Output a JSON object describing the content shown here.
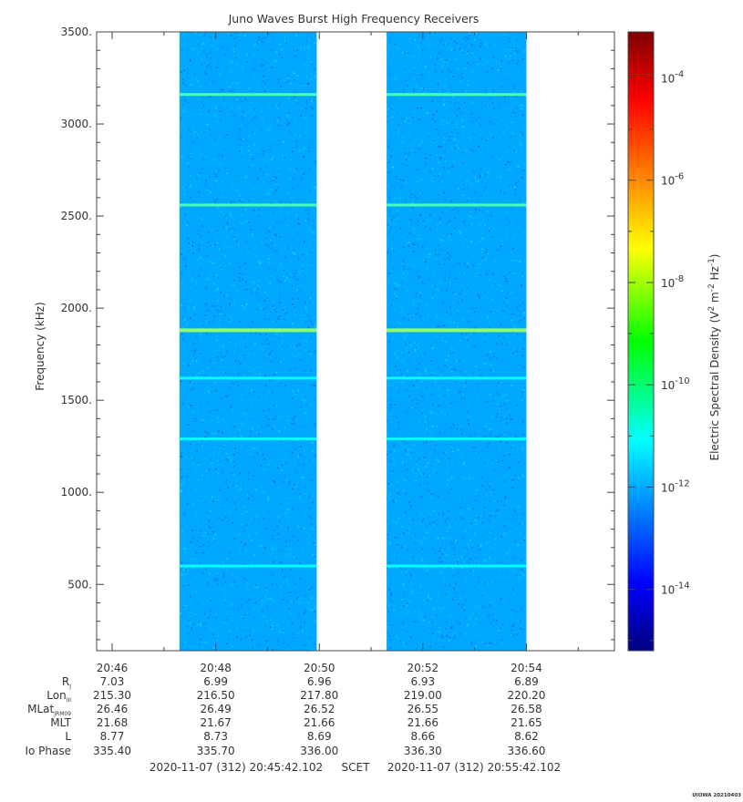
{
  "chart_data": {
    "type": "heatmap",
    "title": "Juno Waves Burst High Frequency Receivers",
    "ylabel": "Frequency (kHz)",
    "ylim": [
      140,
      3500
    ],
    "y_tick_labels": [
      "3500.",
      "3000.",
      "2500.",
      "2000.",
      "1500.",
      "1000.",
      "500."
    ],
    "y_tick_values": [
      3500,
      3000,
      2500,
      2000,
      1500,
      1000,
      500
    ],
    "x_tick_labels": [
      "20:46",
      "20:48",
      "20:50",
      "20:52",
      "20:54"
    ],
    "x_tick_minutes": [
      46,
      48,
      50,
      52,
      54
    ],
    "xlim_minutes": [
      45.7,
      55.7
    ],
    "data_intervals_minutes": [
      [
        47.3,
        49.95
      ],
      [
        51.3,
        54.0
      ]
    ],
    "emission_lines_khz": [
      3160,
      2560,
      1880,
      1620,
      1290,
      600
    ],
    "background_density_log10": -11.7,
    "colorbar": {
      "label": "Electric Spectral Density (V",
      "label_sup1": "2",
      "label_mid": " m",
      "label_sup2": "-2",
      "label_mid2": " Hz",
      "label_sup3": "-1",
      "label_end": ")",
      "range_log10": [
        -15.2,
        -3.1
      ],
      "tick_base": "10",
      "tick_exponents": [
        "-4",
        "-6",
        "-8",
        "-10",
        "-12",
        "-14"
      ]
    },
    "ephemeris": {
      "rows": [
        {
          "label": "R",
          "sub": "J",
          "values": [
            "7.03",
            "6.99",
            "6.96",
            "6.93",
            "6.89"
          ]
        },
        {
          "label": "Lon",
          "sub": "III",
          "values": [
            "215.30",
            "216.50",
            "217.80",
            "219.00",
            "220.20"
          ]
        },
        {
          "label": "MLat",
          "sub": "JRM09",
          "values": [
            "26.46",
            "26.49",
            "26.52",
            "26.55",
            "26.58"
          ]
        },
        {
          "label": "MLT",
          "sub": "",
          "values": [
            "21.68",
            "21.67",
            "21.66",
            "21.66",
            "21.65"
          ]
        },
        {
          "label": "L",
          "sub": "",
          "values": [
            "8.77",
            "8.73",
            "8.69",
            "8.66",
            "8.62"
          ]
        },
        {
          "label": "Io Phase",
          "sub": "",
          "values": [
            "335.40",
            "335.70",
            "336.00",
            "336.30",
            "336.60"
          ]
        }
      ]
    },
    "time_range": {
      "start": "2020-11-07 (312) 20:45:42.102",
      "frame": "SCET",
      "end": "2020-11-07 (312) 20:55:42.102"
    },
    "footer_credit": "UIOWA 20210403"
  }
}
